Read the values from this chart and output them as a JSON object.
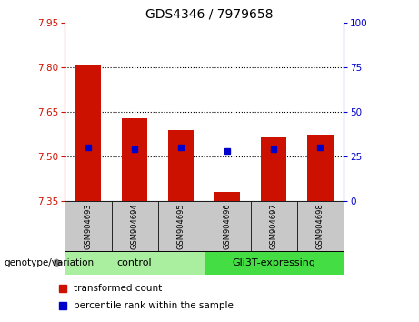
{
  "title": "GDS4346 / 7979658",
  "samples": [
    "GSM904693",
    "GSM904694",
    "GSM904695",
    "GSM904696",
    "GSM904697",
    "GSM904698"
  ],
  "red_values": [
    7.81,
    7.63,
    7.59,
    7.38,
    7.565,
    7.575
  ],
  "blue_values": [
    30,
    29,
    30,
    28,
    29,
    30
  ],
  "ylim_left": [
    7.35,
    7.95
  ],
  "ylim_right": [
    0,
    100
  ],
  "yticks_left": [
    7.35,
    7.5,
    7.65,
    7.8,
    7.95
  ],
  "yticks_right": [
    0,
    25,
    50,
    75,
    100
  ],
  "grid_lines": [
    7.5,
    7.65,
    7.8
  ],
  "bar_width": 0.55,
  "bar_bottom": 7.35,
  "group_label": "genotype/variation",
  "legend_red": "transformed count",
  "legend_blue": "percentile rank within the sample",
  "red_color": "#cc1100",
  "blue_color": "#0000cc",
  "left_tick_color": "#cc1100",
  "right_tick_color": "#0000cc",
  "bg_color": "#c8c8c8",
  "plot_bg": "#ffffff",
  "blue_marker_size": 5,
  "ctrl_color": "#aaeea0",
  "gli_color": "#44dd44"
}
